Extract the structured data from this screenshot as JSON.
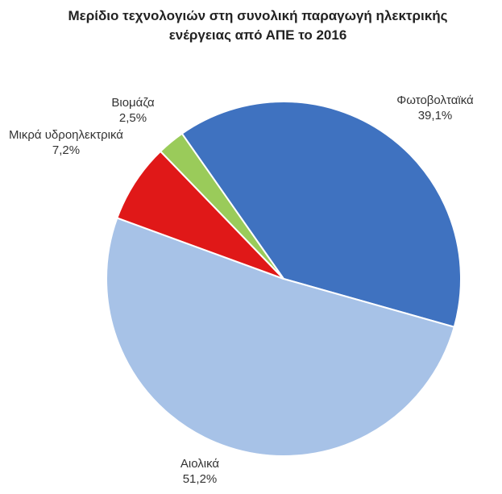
{
  "chart_data": {
    "type": "pie",
    "title": "Μερίδιο τεχνολογιών στη συνολική παραγωγή ηλεκτρικής ενέργειας από ΑΠΕ το 2016",
    "categories": [
      "Φωτοβολταϊκά",
      "Αιολικά",
      "Μικρά υδροηλεκτρικά",
      "Βιομάζα"
    ],
    "values": [
      39.1,
      51.2,
      7.2,
      2.5
    ],
    "value_labels": [
      "39,1%",
      "51,2%",
      "7,2%",
      "2,5%"
    ],
    "colors": [
      "#3f72c0",
      "#a7c2e7",
      "#e01818",
      "#9acb5a"
    ]
  }
}
